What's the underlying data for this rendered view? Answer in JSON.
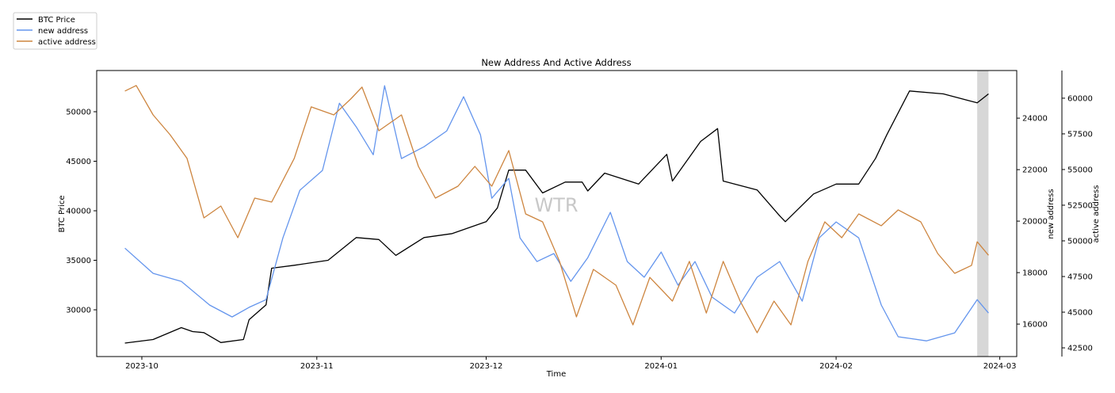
{
  "chart_data": {
    "type": "line",
    "title": "New Address And Active Address",
    "xlabel": "Time",
    "watermark": "WTR",
    "xlim": [
      "2023-09-23",
      "2024-03-04"
    ],
    "x_ticks": [
      "2023-10",
      "2023-11",
      "2023-12",
      "2024-01",
      "2024-02",
      "2024-03"
    ],
    "x_tick_dates": [
      "2023-10-01",
      "2023-11-01",
      "2023-12-01",
      "2024-01-01",
      "2024-02-01",
      "2024-03-01"
    ],
    "shaded_region": [
      "2024-02-26",
      "2024-02-28"
    ],
    "legend": {
      "placement": "top-left outside",
      "entries": [
        "BTC Price",
        "new address",
        "active address"
      ]
    },
    "axes": {
      "left": {
        "label": "BTC Price",
        "ylim": [
          25280,
          54160
        ],
        "ticks": [
          30000,
          35000,
          40000,
          45000,
          50000
        ]
      },
      "right1": {
        "label": "new address",
        "ylim": [
          14740,
          25850
        ],
        "ticks": [
          16000,
          18000,
          20000,
          22000,
          24000
        ]
      },
      "right2": {
        "label": "active address",
        "ylim": [
          41890,
          61940
        ],
        "ticks": [
          42500,
          45000,
          47500,
          50000,
          52500,
          55000,
          57500,
          60000
        ]
      }
    },
    "series": [
      {
        "name": "BTC Price",
        "axis": "left",
        "color": "#000000",
        "points": [
          [
            "2023-09-28",
            26640
          ],
          [
            "2023-10-03",
            27000
          ],
          [
            "2023-10-08",
            28200
          ],
          [
            "2023-10-10",
            27800
          ],
          [
            "2023-10-12",
            27700
          ],
          [
            "2023-10-15",
            26700
          ],
          [
            "2023-10-19",
            27000
          ],
          [
            "2023-10-20",
            29000
          ],
          [
            "2023-10-23",
            30500
          ],
          [
            "2023-10-24",
            34200
          ],
          [
            "2023-10-28",
            34500
          ],
          [
            "2023-11-03",
            35000
          ],
          [
            "2023-11-08",
            37300
          ],
          [
            "2023-11-12",
            37100
          ],
          [
            "2023-11-15",
            35500
          ],
          [
            "2023-11-20",
            37300
          ],
          [
            "2023-11-25",
            37700
          ],
          [
            "2023-12-01",
            38900
          ],
          [
            "2023-12-03",
            40300
          ],
          [
            "2023-12-05",
            44100
          ],
          [
            "2023-12-08",
            44100
          ],
          [
            "2023-12-11",
            41800
          ],
          [
            "2023-12-15",
            42900
          ],
          [
            "2023-12-18",
            42900
          ],
          [
            "2023-12-19",
            42000
          ],
          [
            "2023-12-22",
            43800
          ],
          [
            "2023-12-28",
            42700
          ],
          [
            "2024-01-02",
            45700
          ],
          [
            "2024-01-03",
            43000
          ],
          [
            "2024-01-08",
            47000
          ],
          [
            "2024-01-11",
            48300
          ],
          [
            "2024-01-12",
            43000
          ],
          [
            "2024-01-18",
            42100
          ],
          [
            "2024-01-22",
            39500
          ],
          [
            "2024-01-23",
            38900
          ],
          [
            "2024-01-28",
            41700
          ],
          [
            "2024-02-01",
            42700
          ],
          [
            "2024-02-05",
            42700
          ],
          [
            "2024-02-08",
            45300
          ],
          [
            "2024-02-10",
            47700
          ],
          [
            "2024-02-14",
            52100
          ],
          [
            "2024-02-20",
            51800
          ],
          [
            "2024-02-26",
            50900
          ],
          [
            "2024-02-28",
            51800
          ]
        ]
      },
      {
        "name": "new address",
        "axis": "right1",
        "color": "#6495ED",
        "points": [
          [
            "2023-09-28",
            18950
          ],
          [
            "2023-10-03",
            17970
          ],
          [
            "2023-10-08",
            17660
          ],
          [
            "2023-10-13",
            16740
          ],
          [
            "2023-10-17",
            16280
          ],
          [
            "2023-10-20",
            16650
          ],
          [
            "2023-10-23",
            16950
          ],
          [
            "2023-10-26",
            19350
          ],
          [
            "2023-10-29",
            21200
          ],
          [
            "2023-11-02",
            21970
          ],
          [
            "2023-11-05",
            24580
          ],
          [
            "2023-11-08",
            23660
          ],
          [
            "2023-11-11",
            22580
          ],
          [
            "2023-11-13",
            25260
          ],
          [
            "2023-11-16",
            22430
          ],
          [
            "2023-11-20",
            22890
          ],
          [
            "2023-11-24",
            23500
          ],
          [
            "2023-11-27",
            24830
          ],
          [
            "2023-11-30",
            23350
          ],
          [
            "2023-12-02",
            20890
          ],
          [
            "2023-12-05",
            21660
          ],
          [
            "2023-12-07",
            19350
          ],
          [
            "2023-12-10",
            18430
          ],
          [
            "2023-12-13",
            18740
          ],
          [
            "2023-12-16",
            17660
          ],
          [
            "2023-12-19",
            18580
          ],
          [
            "2023-12-23",
            20340
          ],
          [
            "2023-12-26",
            18430
          ],
          [
            "2023-12-29",
            17820
          ],
          [
            "2024-01-01",
            18800
          ],
          [
            "2024-01-04",
            17510
          ],
          [
            "2024-01-07",
            18430
          ],
          [
            "2024-01-10",
            17050
          ],
          [
            "2024-01-14",
            16430
          ],
          [
            "2024-01-18",
            17820
          ],
          [
            "2024-01-22",
            18430
          ],
          [
            "2024-01-26",
            16890
          ],
          [
            "2024-01-29",
            19350
          ],
          [
            "2024-02-01",
            19970
          ],
          [
            "2024-02-05",
            19350
          ],
          [
            "2024-02-09",
            16740
          ],
          [
            "2024-02-12",
            15510
          ],
          [
            "2024-02-17",
            15350
          ],
          [
            "2024-02-22",
            15660
          ],
          [
            "2024-02-26",
            16950
          ],
          [
            "2024-02-28",
            16430
          ]
        ]
      },
      {
        "name": "active address",
        "axis": "right2",
        "color": "#CD853F",
        "points": [
          [
            "2023-09-28",
            60500
          ],
          [
            "2023-09-30",
            60890
          ],
          [
            "2023-10-03",
            58830
          ],
          [
            "2023-10-06",
            57440
          ],
          [
            "2023-10-09",
            55780
          ],
          [
            "2023-10-12",
            51610
          ],
          [
            "2023-10-15",
            52440
          ],
          [
            "2023-10-18",
            50220
          ],
          [
            "2023-10-21",
            53000
          ],
          [
            "2023-10-24",
            52720
          ],
          [
            "2023-10-28",
            55780
          ],
          [
            "2023-10-31",
            59390
          ],
          [
            "2023-11-04",
            58830
          ],
          [
            "2023-11-07",
            59940
          ],
          [
            "2023-11-09",
            60780
          ],
          [
            "2023-11-12",
            57720
          ],
          [
            "2023-11-16",
            58830
          ],
          [
            "2023-11-19",
            55220
          ],
          [
            "2023-11-22",
            53000
          ],
          [
            "2023-11-26",
            53830
          ],
          [
            "2023-11-29",
            55220
          ],
          [
            "2023-12-02",
            53830
          ],
          [
            "2023-12-05",
            56330
          ],
          [
            "2023-12-08",
            51890
          ],
          [
            "2023-12-11",
            51330
          ],
          [
            "2023-12-14",
            48560
          ],
          [
            "2023-12-17",
            44670
          ],
          [
            "2023-12-20",
            48000
          ],
          [
            "2023-12-24",
            46890
          ],
          [
            "2023-12-27",
            44110
          ],
          [
            "2023-12-30",
            47440
          ],
          [
            "2024-01-03",
            45780
          ],
          [
            "2024-01-06",
            48560
          ],
          [
            "2024-01-09",
            44940
          ],
          [
            "2024-01-12",
            48560
          ],
          [
            "2024-01-15",
            45780
          ],
          [
            "2024-01-18",
            43560
          ],
          [
            "2024-01-21",
            45780
          ],
          [
            "2024-01-24",
            44110
          ],
          [
            "2024-01-27",
            48560
          ],
          [
            "2024-01-30",
            51330
          ],
          [
            "2024-02-02",
            50220
          ],
          [
            "2024-02-05",
            51890
          ],
          [
            "2024-02-09",
            51060
          ],
          [
            "2024-02-12",
            52170
          ],
          [
            "2024-02-16",
            51330
          ],
          [
            "2024-02-19",
            49110
          ],
          [
            "2024-02-22",
            47720
          ],
          [
            "2024-02-25",
            48280
          ],
          [
            "2024-02-26",
            49940
          ],
          [
            "2024-02-28",
            48990
          ]
        ]
      }
    ]
  }
}
